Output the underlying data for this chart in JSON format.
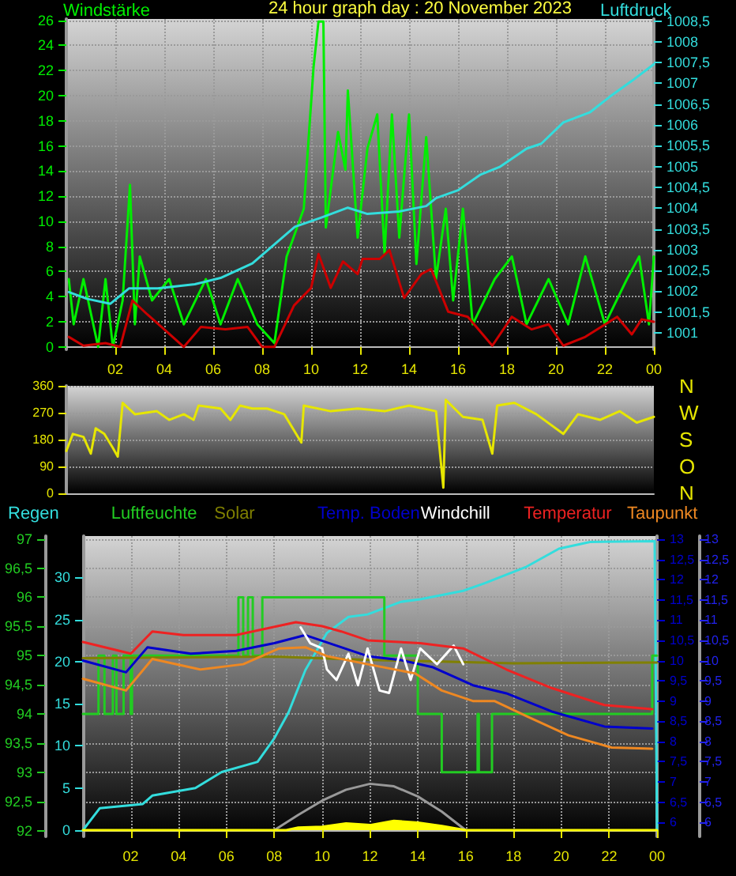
{
  "chart_data": [
    {
      "type": "line",
      "title": "24 hour graph day : 20 November 2023",
      "xlim": [
        "2023-11-20T00:00",
        "2023-11-21T00:00"
      ],
      "xticks": [
        {
          "value": "2023-11-20T02:00",
          "label": "02"
        },
        {
          "value": "2023-11-20T04:00",
          "label": "04"
        },
        {
          "value": "2023-11-20T06:00",
          "label": "06"
        },
        {
          "value": "2023-11-20T08:00",
          "label": "08"
        },
        {
          "value": "2023-11-20T10:00",
          "label": "10"
        },
        {
          "value": "2023-11-20T12:00",
          "label": "12"
        },
        {
          "value": "2023-11-20T14:00",
          "label": "14"
        },
        {
          "value": "2023-11-20T16:00",
          "label": "16"
        },
        {
          "value": "2023-11-20T18:00",
          "label": "18"
        },
        {
          "value": "2023-11-20T20:00",
          "label": "20"
        },
        {
          "value": "2023-11-20T22:00",
          "label": "22"
        },
        {
          "value": "2023-11-21T00:00",
          "label": "00"
        }
      ],
      "ylim": [
        -0.2,
        26.1
      ],
      "yticks": [
        0,
        2,
        4,
        6,
        8,
        10,
        12,
        14,
        16,
        18,
        20,
        22,
        24,
        26
      ],
      "y2lim": [
        1000.6,
        1008.55
      ],
      "y2ticks": [
        1001,
        {
          "value": 1001.5,
          "label": "1001,5"
        },
        1002,
        {
          "value": 1002.5,
          "label": "1002,5"
        },
        1003,
        {
          "value": 1003.5,
          "label": "1003,5"
        },
        1004,
        {
          "value": 1004.5,
          "label": "1004,5"
        },
        1005,
        {
          "value": 1005.5,
          "label": "1005,5"
        },
        1006,
        {
          "value": 1006.5,
          "label": "1006,5"
        },
        1007,
        {
          "value": 1007.5,
          "label": "1007,5"
        },
        1008,
        {
          "value": 1008.5,
          "label": "1008,5"
        }
      ],
      "grid": true,
      "legend": "top",
      "marker": "none",
      "line_style": "solid",
      "series": [
        {
          "name": "Windstärke",
          "color": "#00ee00",
          "x": [
            "2023-11-20T00:06",
            "2023-11-20T00:18",
            "2023-11-20T00:42",
            "2023-11-20T01:18",
            "2023-11-20T01:36",
            "2023-11-20T01:54",
            "2023-11-20T02:18",
            "2023-11-20T02:36",
            "2023-11-20T02:48",
            "2023-11-20T03:00",
            "2023-11-20T03:30",
            "2023-11-20T04:12",
            "2023-11-20T04:48",
            "2023-11-20T05:42",
            "2023-11-20T06:18",
            "2023-11-20T07:00",
            "2023-11-20T07:48",
            "2023-11-20T08:30",
            "2023-11-20T09:00",
            "2023-11-20T09:42",
            "2023-11-20T10:06",
            "2023-11-20T10:18",
            "2023-11-20T10:30",
            "2023-11-20T10:36",
            "2023-11-20T11:06",
            "2023-11-20T11:24",
            "2023-11-20T11:30",
            "2023-11-20T11:54",
            "2023-11-20T12:18",
            "2023-11-20T12:42",
            "2023-11-20T13:00",
            "2023-11-20T13:18",
            "2023-11-20T13:36",
            "2023-11-20T14:00",
            "2023-11-20T14:18",
            "2023-11-20T14:42",
            "2023-11-20T15:06",
            "2023-11-20T15:30",
            "2023-11-20T15:48",
            "2023-11-20T16:12",
            "2023-11-20T16:36",
            "2023-11-20T17:30",
            "2023-11-20T18:12",
            "2023-11-20T18:48",
            "2023-11-20T19:42",
            "2023-11-20T20:30",
            "2023-11-20T21:12",
            "2023-11-20T22:00",
            "2023-11-20T22:54",
            "2023-11-20T23:24",
            "2023-11-20T23:48",
            "2023-11-21T00:00"
          ],
          "values": [
            5.4,
            1.8,
            5.4,
            0,
            5.4,
            0,
            3.7,
            12.9,
            1.8,
            7.2,
            3.7,
            5.4,
            1.8,
            5.4,
            1.8,
            5.4,
            1.8,
            0.3,
            7.2,
            11,
            22.3,
            25.9,
            25.9,
            9.5,
            17.1,
            14.1,
            20.4,
            8.7,
            15.8,
            18.5,
            7.4,
            18.5,
            8.7,
            18.5,
            6.6,
            16.7,
            5.4,
            11,
            3.7,
            11,
            1.8,
            5.4,
            7.2,
            1.8,
            5.4,
            1.8,
            7.2,
            1.8,
            5.4,
            7.2,
            1.8,
            7.2
          ]
        },
        {
          "color": "#cc0000",
          "x": [
            "2023-11-20T00:06",
            "2023-11-20T00:42",
            "2023-11-20T01:36",
            "2023-11-20T02:12",
            "2023-11-20T02:42",
            "2023-11-20T03:18",
            "2023-11-20T04:00",
            "2023-11-20T04:48",
            "2023-11-20T05:30",
            "2023-11-20T06:30",
            "2023-11-20T07:24",
            "2023-11-20T08:00",
            "2023-11-20T08:30",
            "2023-11-20T09:18",
            "2023-11-20T10:00",
            "2023-11-20T10:18",
            "2023-11-20T10:48",
            "2023-11-20T11:18",
            "2023-11-20T11:54",
            "2023-11-20T12:06",
            "2023-11-20T12:48",
            "2023-11-20T13:12",
            "2023-11-20T13:48",
            "2023-11-20T14:30",
            "2023-11-20T14:54",
            "2023-11-20T15:36",
            "2023-11-20T16:24",
            "2023-11-20T17:24",
            "2023-11-20T18:12",
            "2023-11-20T19:00",
            "2023-11-20T19:42",
            "2023-11-20T20:18",
            "2023-11-20T21:12",
            "2023-11-20T22:30",
            "2023-11-20T23:06",
            "2023-11-20T23:30",
            "2023-11-21T00:00"
          ],
          "values": [
            0.8,
            0.1,
            0.3,
            0,
            3.7,
            2.6,
            1.4,
            0,
            1.6,
            1.4,
            1.6,
            0,
            0,
            3.3,
            4.7,
            7.4,
            4.7,
            6.8,
            5.8,
            7,
            7,
            7.7,
            3.9,
            5.8,
            6.2,
            2.8,
            2.4,
            0.1,
            2.4,
            1.4,
            1.8,
            0.1,
            0.8,
            2.4,
            1,
            2.2,
            2
          ]
        },
        {
          "name": "Luftdruck",
          "color": "#33dddd",
          "axis": "y2",
          "x": [
            "2023-11-20T00:06",
            "2023-11-20T00:50",
            "2023-11-20T01:48",
            "2023-11-20T02:34",
            "2023-11-20T03:44",
            "2023-11-20T05:15",
            "2023-11-20T06:18",
            "2023-11-20T07:36",
            "2023-11-20T09:20",
            "2023-11-20T10:24",
            "2023-11-20T11:30",
            "2023-11-20T12:18",
            "2023-11-20T13:36",
            "2023-11-20T14:42",
            "2023-11-20T15:06",
            "2023-11-20T16:00",
            "2023-11-20T16:54",
            "2023-11-20T17:42",
            "2023-11-20T18:48",
            "2023-11-20T19:24",
            "2023-11-20T20:18",
            "2023-11-20T21:24",
            "2023-11-20T22:12",
            "2023-11-20T23:06",
            "2023-11-21T00:00"
          ],
          "values": [
            1001.98,
            1001.82,
            1001.7,
            1002.07,
            1002.07,
            1002.17,
            1002.32,
            1002.67,
            1003.55,
            1003.77,
            1004.01,
            1003.86,
            1003.92,
            1004.05,
            1004.24,
            1004.43,
            1004.8,
            1004.99,
            1005.43,
            1005.55,
            1006.06,
            1006.31,
            1006.68,
            1007.06,
            1007.46
          ]
        }
      ]
    },
    {
      "type": "line",
      "xlim": [
        "2023-11-20T00:00",
        "2023-11-21T00:00"
      ],
      "ylim": [
        0,
        360
      ],
      "yticks": [
        0,
        90,
        180,
        270,
        360
      ],
      "annotations": [
        "N",
        "W",
        "S",
        "O",
        "N"
      ],
      "grid": "y",
      "tick_labels": "y",
      "marker": "none",
      "line_style": "solid",
      "series": [
        {
          "color": "#e6e600",
          "x": [
            "2023-11-20T00:00",
            "2023-11-20T00:16",
            "2023-11-20T00:42",
            "2023-11-20T01:00",
            "2023-11-20T01:12",
            "2023-11-20T01:33",
            "2023-11-20T01:54",
            "2023-11-20T02:06",
            "2023-11-20T02:18",
            "2023-11-20T02:48",
            "2023-11-20T03:42",
            "2023-11-20T04:12",
            "2023-11-20T04:48",
            "2023-11-20T05:12",
            "2023-11-20T05:24",
            "2023-11-20T06:18",
            "2023-11-20T06:42",
            "2023-11-20T07:06",
            "2023-11-20T07:36",
            "2023-11-20T08:12",
            "2023-11-20T08:54",
            "2023-11-20T09:36",
            "2023-11-20T09:42",
            "2023-11-20T10:48",
            "2023-11-20T11:54",
            "2023-11-20T13:00",
            "2023-11-20T14:00",
            "2023-11-20T15:06",
            "2023-11-20T15:24",
            "2023-11-20T15:30",
            "2023-11-20T16:12",
            "2023-11-20T17:00",
            "2023-11-20T17:24",
            "2023-11-20T17:36",
            "2023-11-20T18:18",
            "2023-11-20T19:12",
            "2023-11-20T20:18",
            "2023-11-20T20:54",
            "2023-11-20T21:48",
            "2023-11-20T22:36",
            "2023-11-20T23:18",
            "2023-11-21T00:00"
          ],
          "values": [
            142,
            199,
            189,
            133,
            218,
            199,
            152,
            123,
            303,
            265,
            275,
            246,
            265,
            246,
            294,
            284,
            246,
            294,
            284,
            284,
            265,
            170,
            294,
            275,
            284,
            275,
            294,
            275,
            19,
            313,
            256,
            246,
            133,
            294,
            303,
            265,
            199,
            265,
            246,
            275,
            237,
            256
          ]
        }
      ]
    },
    {
      "type": "line",
      "xlim": [
        "2023-11-20T00:00",
        "2023-11-21T00:00"
      ],
      "xticks": [
        {
          "value": "2023-11-20T02:00",
          "label": "02"
        },
        {
          "value": "2023-11-20T04:00",
          "label": "04"
        },
        {
          "value": "2023-11-20T06:00",
          "label": "06"
        },
        {
          "value": "2023-11-20T08:00",
          "label": "08"
        },
        {
          "value": "2023-11-20T10:00",
          "label": "10"
        },
        {
          "value": "2023-11-20T12:00",
          "label": "12"
        },
        {
          "value": "2023-11-20T14:00",
          "label": "14"
        },
        {
          "value": "2023-11-20T16:00",
          "label": "16"
        },
        {
          "value": "2023-11-20T18:00",
          "label": "18"
        },
        {
          "value": "2023-11-20T20:00",
          "label": "20"
        },
        {
          "value": "2023-11-20T22:00",
          "label": "22"
        },
        {
          "value": "2023-11-21T00:00",
          "label": "00"
        }
      ],
      "ylim": [
        91.9,
        97.05
      ],
      "yticks": [
        92,
        {
          "value": 92.5,
          "label": "92,5"
        },
        93,
        {
          "value": 93.5,
          "label": "93,5"
        },
        94,
        {
          "value": 94.5,
          "label": "94,5"
        },
        95,
        {
          "value": 95.5,
          "label": "95,5"
        },
        96,
        {
          "value": 96.5,
          "label": "96,5"
        },
        97
      ],
      "y2lim": [
        5.65,
        13.08
      ],
      "y2ticks": [
        6,
        {
          "value": 6.5,
          "label": "6,5"
        },
        7,
        {
          "value": 7.5,
          "label": "7,5"
        },
        8,
        {
          "value": 8.5,
          "label": "8,5"
        },
        9,
        {
          "value": 9.5,
          "label": "9,5"
        },
        10,
        {
          "value": 10.5,
          "label": "10,5"
        },
        11,
        {
          "value": 11.5,
          "label": "11,5"
        },
        12,
        {
          "value": 12.5,
          "label": "12,5"
        },
        13
      ],
      "y3lim": [
        -0.75,
        34.9
      ],
      "y3ticks": [
        0,
        5,
        10,
        15,
        20,
        25,
        30
      ],
      "annotations": [
        "13",
        "12,5",
        "12",
        "11,5",
        "11",
        "10,5",
        "10",
        "9,5",
        "9",
        "8,5",
        "8",
        "7,5",
        "7",
        "6,5",
        "6"
      ],
      "grid": true,
      "legend": "top",
      "marker": "none",
      "line_style": "solid",
      "series": [
        {
          "name": "Regen",
          "color": "#33dddd",
          "axis": "y3",
          "x": [
            "2023-11-20T00:00",
            "2023-11-20T00:42",
            "2023-11-20T02:30",
            "2023-11-20T02:54",
            "2023-11-20T04:42",
            "2023-11-20T05:48",
            "2023-11-20T07:18",
            "2023-11-20T08:00",
            "2023-11-20T08:36",
            "2023-11-20T09:18",
            "2023-11-20T10:12",
            "2023-11-20T11:06",
            "2023-11-20T11:54",
            "2023-11-20T13:18",
            "2023-11-20T14:06",
            "2023-11-20T15:54",
            "2023-11-20T16:48",
            "2023-11-20T18:30",
            "2023-11-20T19:54",
            "2023-11-20T21:12",
            "2023-11-20T23:54",
            "2023-11-21T00:00"
          ],
          "values": [
            0,
            2.6,
            3.1,
            4.1,
            5,
            6.9,
            8.1,
            10.9,
            14,
            19,
            23.4,
            25.3,
            25.6,
            27.1,
            27.4,
            28.4,
            29.3,
            31.2,
            33.4,
            34.2,
            34.3,
            0
          ]
        },
        {
          "name": "Luftfeuchte",
          "color": "#22cc22",
          "type": "step",
          "x": [
            "2023-11-20T00:00",
            "2023-11-20T00:39",
            "2023-11-20T00:54",
            "2023-11-20T01:15",
            "2023-11-20T01:24",
            "2023-11-20T01:42",
            "2023-11-20T02:00",
            "2023-11-20T02:03",
            "2023-11-20T06:30",
            "2023-11-20T06:42",
            "2023-11-20T06:54",
            "2023-11-20T07:06",
            "2023-11-20T07:30",
            "2023-11-20T12:36",
            "2023-11-20T14:00",
            "2023-11-20T15:00",
            "2023-11-20T16:30",
            "2023-11-20T16:33",
            "2023-11-20T17:06",
            "2023-11-20T23:48",
            "2023-11-21T00:00"
          ],
          "values": [
            94,
            95,
            94,
            95,
            94,
            95,
            94,
            95,
            96,
            95,
            96,
            95,
            96,
            95,
            94,
            93,
            94,
            93,
            94,
            95,
            95
          ]
        },
        {
          "name": "Solar",
          "color": "#808000",
          "axis": "y3",
          "x": [
            "2023-11-20T00:00",
            "2023-11-20T08:00",
            "2023-11-20T12:00",
            "2023-11-20T18:00",
            "2023-11-21T00:00"
          ],
          "values": [
            20.4,
            20.6,
            20.2,
            19.8,
            19.9
          ]
        },
        {
          "name": "Temp. Boden",
          "color": "#0000cc",
          "axis": "y2",
          "x": [
            "2023-11-20T00:00",
            "2023-11-20T01:48",
            "2023-11-20T02:42",
            "2023-11-20T04:30",
            "2023-11-20T06:24",
            "2023-11-20T08:00",
            "2023-11-20T09:18",
            "2023-11-20T10:36",
            "2023-11-20T11:54",
            "2023-11-20T13:18",
            "2023-11-20T14:36",
            "2023-11-20T16:18",
            "2023-11-20T17:42",
            "2023-11-20T19:36",
            "2023-11-20T21:48",
            "2023-11-20T23:48"
          ],
          "values": [
            10,
            9.71,
            10.33,
            10.17,
            10.24,
            10.43,
            10.63,
            10.37,
            10.11,
            10.01,
            9.84,
            9.39,
            9.19,
            8.74,
            8.37,
            8.32
          ]
        },
        {
          "name": "Windchill",
          "color": "#ffffff",
          "axis": "y2",
          "x": [
            "2023-11-20T09:06",
            "2023-11-20T09:30",
            "2023-11-20T10:00",
            "2023-11-20T10:12",
            "2023-11-20T10:36",
            "2023-11-20T11:06",
            "2023-11-20T11:30",
            "2023-11-20T11:54",
            "2023-11-20T12:24",
            "2023-11-20T12:48",
            "2023-11-20T13:18",
            "2023-11-20T13:42",
            "2023-11-20T14:06",
            "2023-11-20T14:48",
            "2023-11-20T15:30",
            "2023-11-20T15:54"
          ],
          "values": [
            10.82,
            10.43,
            10.3,
            9.78,
            9.52,
            10.17,
            9.39,
            10.3,
            9.26,
            9.2,
            10.3,
            9.52,
            10.3,
            9.91,
            10.37,
            9.91
          ]
        },
        {
          "name": "Temperatur",
          "color": "#ee2222",
          "axis": "y2",
          "x": [
            "2023-11-20T00:00",
            "2023-11-20T02:00",
            "2023-11-20T02:54",
            "2023-11-20T04:12",
            "2023-11-20T06:24",
            "2023-11-20T08:54",
            "2023-11-20T10:00",
            "2023-11-20T10:48",
            "2023-11-20T11:54",
            "2023-11-20T14:06",
            "2023-11-20T15:54",
            "2023-11-20T17:42",
            "2023-11-20T19:36",
            "2023-11-20T21:48",
            "2023-11-20T23:48"
          ],
          "values": [
            10.46,
            10.17,
            10.72,
            10.63,
            10.63,
            10.95,
            10.85,
            10.72,
            10.5,
            10.43,
            10.3,
            9.78,
            9.32,
            8.9,
            8.8
          ]
        },
        {
          "name": "Taupunkt",
          "color": "#ee8822",
          "axis": "y2",
          "x": [
            "2023-11-20T00:00",
            "2023-11-20T01:48",
            "2023-11-20T02:54",
            "2023-11-20T04:54",
            "2023-11-20T06:42",
            "2023-11-20T08:12",
            "2023-11-20T09:18",
            "2023-11-20T10:12",
            "2023-11-20T11:54",
            "2023-11-20T13:54",
            "2023-11-20T15:00",
            "2023-11-20T16:18",
            "2023-11-20T17:12",
            "2023-11-20T18:36",
            "2023-11-20T20:18",
            "2023-11-20T22:06",
            "2023-11-20T23:48"
          ],
          "values": [
            9.55,
            9.26,
            10.04,
            9.78,
            9.91,
            10.3,
            10.33,
            10.11,
            9.91,
            9.68,
            9.26,
            9,
            9,
            8.61,
            8.15,
            7.85,
            7.82
          ]
        },
        {
          "color": "#999999",
          "axis": "y3",
          "x": [
            "2023-11-20T08:00",
            "2023-11-20T09:00",
            "2023-11-20T10:00",
            "2023-11-20T11:00",
            "2023-11-20T12:00",
            "2023-11-20T13:00",
            "2023-11-20T14:00",
            "2023-11-20T15:00",
            "2023-11-20T16:00"
          ],
          "values": [
            0,
            1.8,
            3.5,
            4.8,
            5.5,
            5.2,
            4,
            2.2,
            0
          ]
        },
        {
          "color": "#ffff00",
          "axis": "y3",
          "type": "area",
          "x": [
            "2023-11-20T00:00",
            "2023-11-20T08:30",
            "2023-11-20T09:00",
            "2023-11-20T10:00",
            "2023-11-20T11:00",
            "2023-11-20T12:00",
            "2023-11-20T13:00",
            "2023-11-20T14:00",
            "2023-11-20T15:00",
            "2023-11-20T16:00",
            "2023-11-21T00:00"
          ],
          "values": [
            0,
            0,
            0.3,
            0.4,
            0.8,
            0.6,
            1.1,
            0.9,
            0.5,
            0,
            0
          ]
        }
      ]
    }
  ]
}
